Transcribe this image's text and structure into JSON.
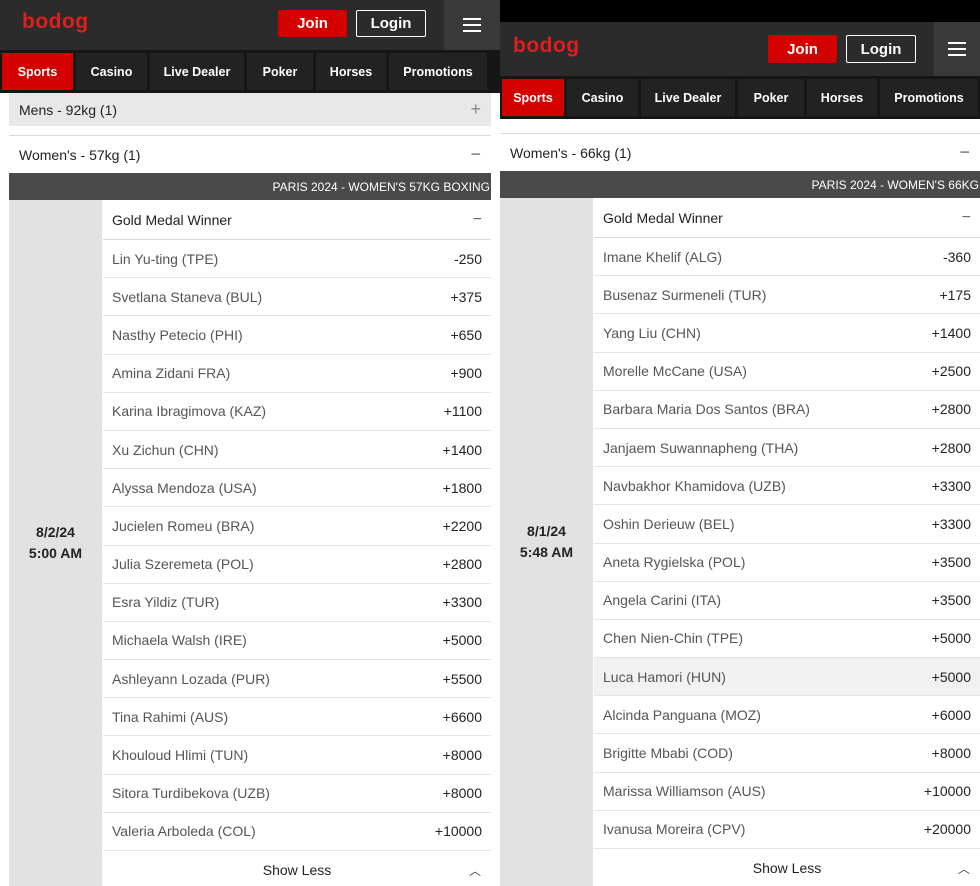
{
  "left": {
    "logo": "bodog",
    "join_label": "Join",
    "login_label": "Login",
    "tabs": [
      "Sports",
      "Casino",
      "Live Dealer",
      "Poker",
      "Horses",
      "Promotions"
    ],
    "mens_category": "Mens - 92kg (1)",
    "category": "Women's - 57kg (1)",
    "event_title": "PARIS 2024 - WOMEN'S 57KG BOXING",
    "date": "8/2/24",
    "time": "5:00 AM",
    "market_title": "Gold Medal Winner",
    "outcomes": [
      {
        "name": "Lin Yu-ting (TPE)",
        "price": "-250"
      },
      {
        "name": "Svetlana Staneva (BUL)",
        "price": "+375"
      },
      {
        "name": "Nasthy Petecio (PHI)",
        "price": "+650"
      },
      {
        "name": "Amina Zidani FRA)",
        "price": "+900"
      },
      {
        "name": "Karina Ibragimova (KAZ)",
        "price": "+1100"
      },
      {
        "name": "Xu Zichun (CHN)",
        "price": "+1400"
      },
      {
        "name": "Alyssa Mendoza (USA)",
        "price": "+1800"
      },
      {
        "name": "Jucielen Romeu (BRA)",
        "price": "+2200"
      },
      {
        "name": "Julia Szeremeta (POL)",
        "price": "+2800"
      },
      {
        "name": "Esra Yildiz (TUR)",
        "price": "+3300"
      },
      {
        "name": "Michaela Walsh (IRE)",
        "price": "+5000"
      },
      {
        "name": "Ashleyann Lozada (PUR)",
        "price": "+5500"
      },
      {
        "name": "Tina Rahimi (AUS)",
        "price": "+6600"
      },
      {
        "name": "Khouloud Hlimi (TUN)",
        "price": "+8000"
      },
      {
        "name": "Sitora Turdibekova (UZB)",
        "price": "+8000"
      },
      {
        "name": "Valeria Arboleda (COL)",
        "price": "+10000"
      }
    ],
    "show_less": "Show Less"
  },
  "right": {
    "logo": "bodog",
    "join_label": "Join",
    "login_label": "Login",
    "tabs": [
      "Sports",
      "Casino",
      "Live Dealer",
      "Poker",
      "Horses",
      "Promotions"
    ],
    "category": "Women's - 66kg (1)",
    "event_title": "PARIS 2024 - WOMEN'S 66KG",
    "date": "8/1/24",
    "time": "5:48 AM",
    "market_title": "Gold Medal Winner",
    "outcomes": [
      {
        "name": "Imane Khelif (ALG)",
        "price": "-360"
      },
      {
        "name": "Busenaz Surmeneli (TUR)",
        "price": "+175"
      },
      {
        "name": "Yang Liu (CHN)",
        "price": "+1400"
      },
      {
        "name": "Morelle McCane (USA)",
        "price": "+2500"
      },
      {
        "name": "Barbara Maria Dos Santos (BRA)",
        "price": "+2800"
      },
      {
        "name": "Janjaem Suwannapheng (THA)",
        "price": "+2800"
      },
      {
        "name": "Navbakhor Khamidova (UZB)",
        "price": "+3300"
      },
      {
        "name": "Oshin Derieuw (BEL)",
        "price": "+3300"
      },
      {
        "name": "Aneta Rygielska (POL)",
        "price": "+3500"
      },
      {
        "name": "Angela Carini (ITA)",
        "price": "+3500"
      },
      {
        "name": "Chen Nien-Chin (TPE)",
        "price": "+5000"
      },
      {
        "name": "Luca Hamori (HUN)",
        "price": "+5000"
      },
      {
        "name": "Alcinda Panguana (MOZ)",
        "price": "+6000"
      },
      {
        "name": "Brigitte Mbabi (COD)",
        "price": "+8000"
      },
      {
        "name": "Marissa Williamson (AUS)",
        "price": "+10000"
      },
      {
        "name": "Ivanusa Moreira (CPV)",
        "price": "+20000"
      }
    ],
    "show_less": "Show Less"
  },
  "colors": {
    "brand_red": "#d40000",
    "logo_red": "#e01e1e",
    "header_dark": "#2b2b2b",
    "event_bar": "#4a4a4a",
    "date_column": "#e2e2e2"
  }
}
